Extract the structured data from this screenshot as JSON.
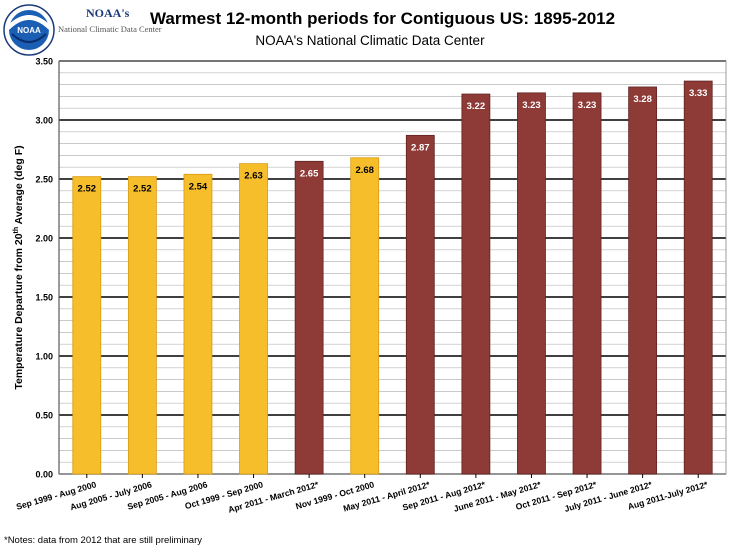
{
  "header": {
    "org_name": "NOAA's",
    "org_sub": "National Climatic Data Center",
    "logo_text": "NOAA"
  },
  "footnote": "*Notes: data from 2012 that are still preliminary",
  "colors": {
    "yellow": "#F6BE2A",
    "red": "#8E3A37",
    "grid_major": "#000000",
    "grid_minor": "#B8B8B8",
    "plot_bg": "#FFFFFF"
  },
  "chart_data": {
    "type": "bar",
    "title": "Warmest 12-month periods for Contiguous US: 1895-2012",
    "subtitle": "NOAA's National Climatic Data Center",
    "xlabel": "",
    "ylabel": "Temperature Departure from 20th Average (deg F)",
    "ylabel_parts": [
      "Temperature Departure from 20",
      "th",
      " Average (deg F)"
    ],
    "ylim": [
      0,
      3.5
    ],
    "yticks": [
      "0.00",
      "0.50",
      "1.00",
      "1.50",
      "2.00",
      "2.50",
      "3.00",
      "3.50"
    ],
    "grid": true,
    "categories": [
      "Sep 1999 - Aug 2000",
      "Aug 2005 - July 2006",
      "Sep 2005 - Aug 2006",
      "Oct 1999 - Sep 2000",
      "Apr 2011 - March 2012*",
      "Nov 1999 - Oct 2000",
      "May 2011 - April 2012*",
      "Sep 2011 - Aug 2012*",
      "June 2011 - May 2012*",
      "Oct 2011 - Sep 2012*",
      "July 2011 - June 2012*",
      "Aug 2011-July 2012*"
    ],
    "values": [
      2.52,
      2.52,
      2.54,
      2.63,
      2.65,
      2.68,
      2.87,
      3.22,
      3.23,
      3.23,
      3.28,
      3.33
    ],
    "labels": [
      "2.52",
      "2.52",
      "2.54",
      "2.63",
      "2.65",
      "2.68",
      "2.87",
      "3.22",
      "3.23",
      "3.23",
      "3.28",
      "3.33"
    ],
    "bar_colors": [
      "yellow",
      "yellow",
      "yellow",
      "yellow",
      "red",
      "yellow",
      "red",
      "red",
      "red",
      "red",
      "red",
      "red"
    ]
  }
}
